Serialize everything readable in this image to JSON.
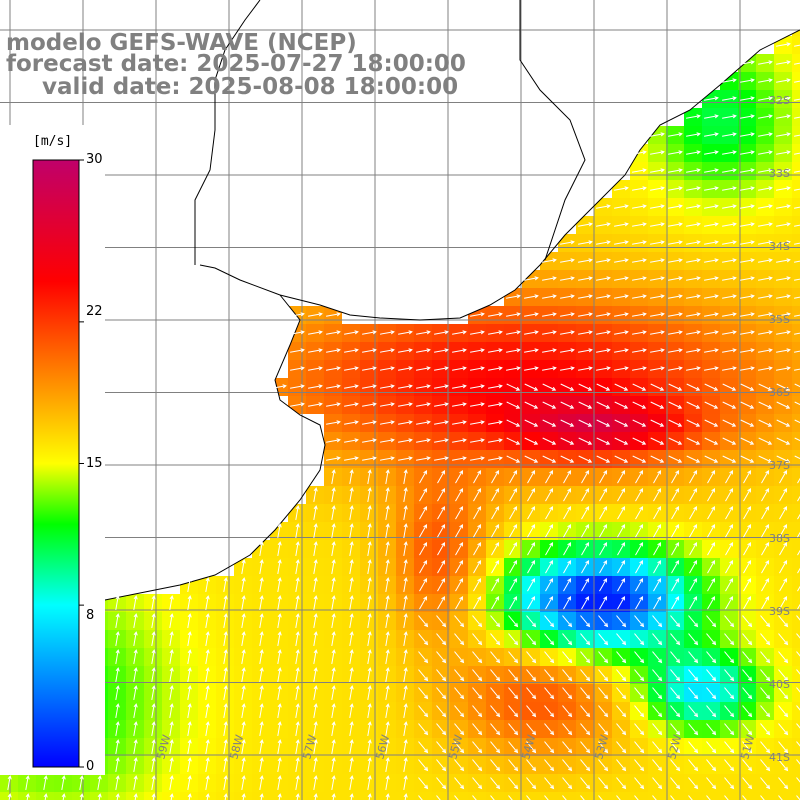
{
  "title": {
    "line1": "modelo GEFS-WAVE (NCEP)",
    "line2": "forecast date: 2025-07-27 18:00:00",
    "line3": "valid date: 2025-08-08 18:00:00"
  },
  "colorbar": {
    "unit": "[m/s]",
    "ticks": [
      "30",
      "22",
      "15",
      "8",
      "0"
    ],
    "tick_values": [
      30,
      22,
      15,
      8,
      0
    ],
    "range": [
      0,
      30
    ],
    "colors": [
      "#0000ff",
      "#00ffff",
      "#00ff00",
      "#ffff00",
      "#ff8000",
      "#ff0000",
      "#c0006a"
    ]
  },
  "map": {
    "land_color": "#ffffff",
    "grid_color": "#808080",
    "coast_color": "#000000",
    "arrow_color": "#ffffff",
    "lon_labels": [
      "61W",
      "60W",
      "59W",
      "58W",
      "57W",
      "56W",
      "55W",
      "54W",
      "53W",
      "52W",
      "51W"
    ],
    "lat_labels": [
      "32S",
      "33S",
      "34S",
      "35S",
      "36S",
      "37S",
      "38S",
      "39S",
      "40S",
      "41S"
    ]
  }
}
